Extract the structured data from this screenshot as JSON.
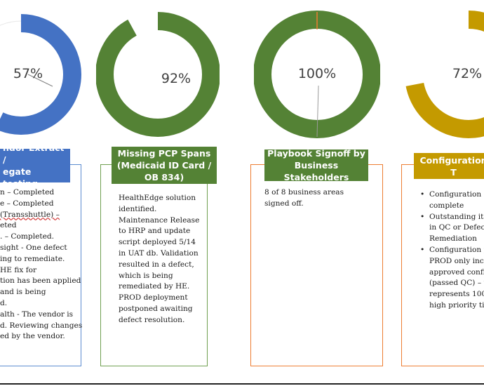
{
  "colors": {
    "blue": "#4472c4",
    "green": "#548235",
    "gold": "#c49a00",
    "orange": "#ed7d31",
    "remainder": "#ffffff"
  },
  "cards": [
    {
      "percent_label": "57%",
      "progress": 0.57,
      "title": "ndor Extract / egate testing",
      "title_lines": [
        "ndor Extract /",
        "egate testing"
      ],
      "body_lines": [
        "n – Completed",
        "e – Completed",
        "(Transshuttle) –",
        "eted",
        ". – Completed.",
        "sight - One defect",
        "ing to remediate.",
        "HE fix for",
        "tion has been applied",
        "and is being",
        "d.",
        "alth - The vendor is",
        "d. Reviewing changes",
        "ed by the vendor."
      ]
    },
    {
      "percent_label": "92%",
      "progress": 0.92,
      "title": "Missing PCP Spans (Medicaid ID Card / OB 834)",
      "title_lines": [
        "Missing PCP Spans",
        "(Medicaid ID Card /",
        "OB 834)"
      ],
      "body": "HealthEdge solution identified. Maintenance Release to HRP and update script deployed 5/14 in UAT db. Validation resulted in a defect, which is being remediated by HE. PROD deployment postponed awaiting defect resolution."
    },
    {
      "percent_label": "100%",
      "progress": 1.0,
      "title": "Playbook Signoff by Business Stakeholders",
      "title_lines": [
        "Playbook Signoff by",
        "Business Stakeholders"
      ],
      "body": "8 of 8 business areas signed off."
    },
    {
      "percent_label": "72%",
      "progress": 0.72,
      "title": "Configuration T",
      "title_lines": [
        "Configuration T"
      ],
      "bullets": [
        "Configuration is complete",
        "Outstanding ite in QC or Defect Remediation",
        "Configuration p PROD only incl approved config (passed QC) – th represents 100% high priority tick"
      ],
      "bullet_lines": [
        [
          "Configuration is",
          "complete"
        ],
        [
          "Outstanding ite",
          "in QC or Defect",
          "Remediation"
        ],
        [
          "Configuration p",
          "PROD only incl",
          "approved config",
          "(passed QC) – th",
          "represents 100%",
          "high priority tick"
        ]
      ]
    }
  ]
}
